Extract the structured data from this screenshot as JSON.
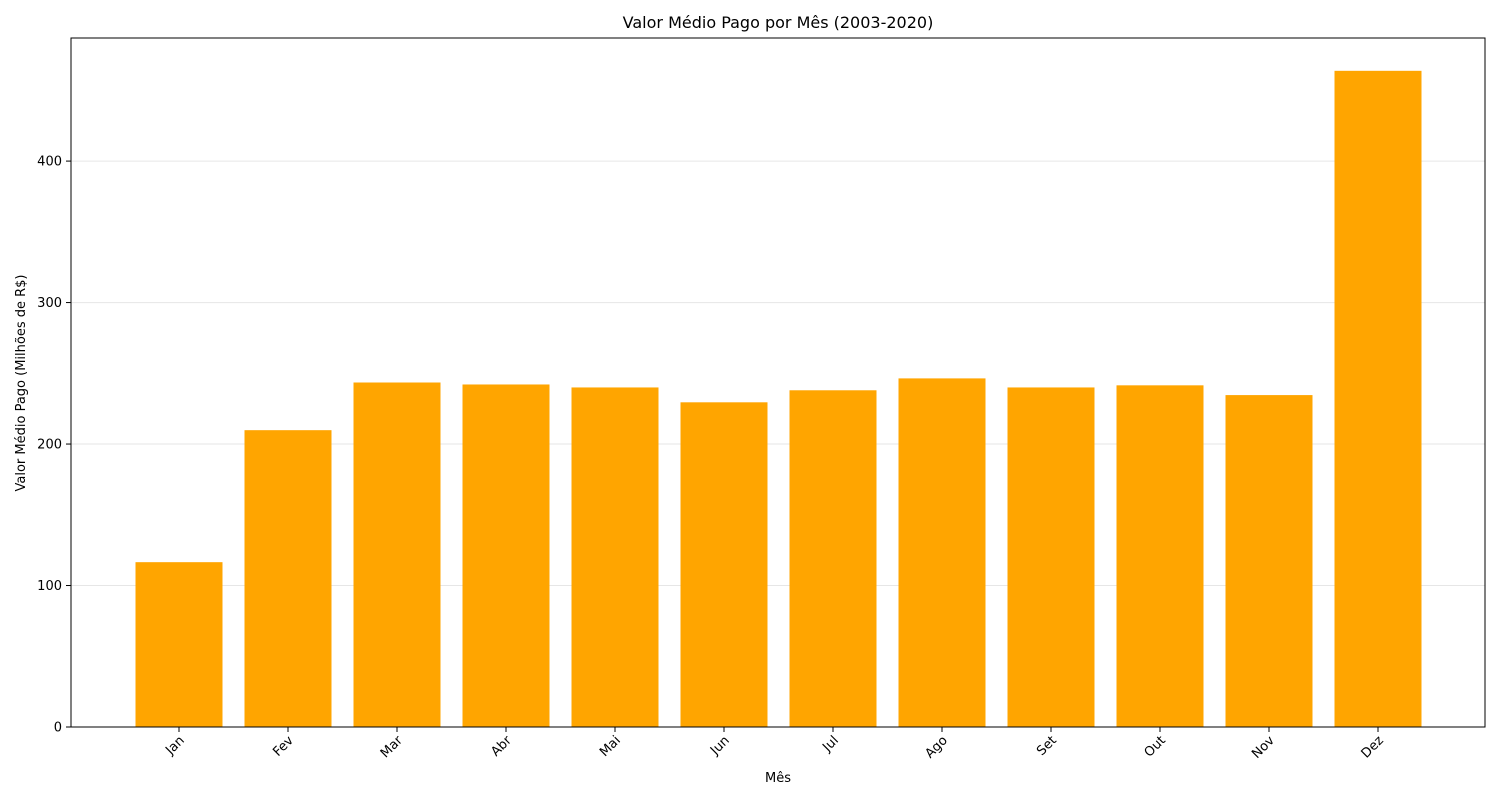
{
  "chart_data": {
    "type": "bar",
    "title": "Valor Médio Pago por Mês (2003-2020)",
    "xlabel": "Mês",
    "ylabel": "Valor Médio Pago (Milhões de R$)",
    "categories": [
      "Jan",
      "Fev",
      "Mar",
      "Abr",
      "Mai",
      "Jun",
      "Jul",
      "Ago",
      "Set",
      "Out",
      "Nov",
      "Dez"
    ],
    "values": [
      116.5,
      209.8,
      243.5,
      242.1,
      240.0,
      229.5,
      238.0,
      246.4,
      240.0,
      241.5,
      234.6,
      463.8
    ],
    "ylim": [
      0,
      487
    ],
    "yticks": [
      0,
      100,
      200,
      300,
      400
    ],
    "bar_color": "#FFA500",
    "grid": "y",
    "legend": "none"
  }
}
